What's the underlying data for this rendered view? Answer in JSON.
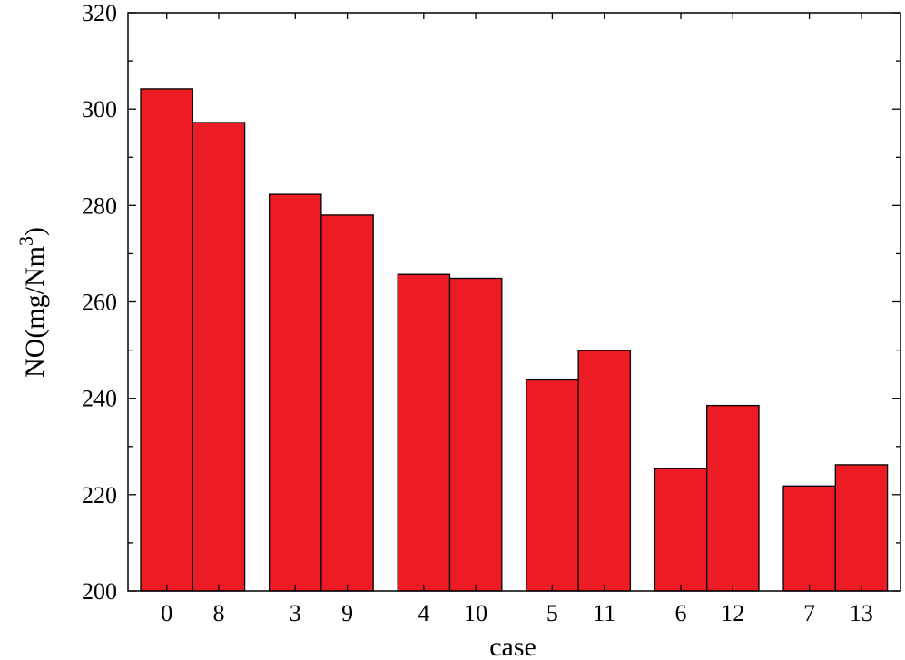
{
  "chart_data": {
    "type": "bar",
    "categories": [
      "0",
      "8",
      "3",
      "9",
      "4",
      "10",
      "5",
      "11",
      "6",
      "12",
      "7",
      "13"
    ],
    "values": [
      304.2,
      297.2,
      282.3,
      278.0,
      265.7,
      264.9,
      243.8,
      249.9,
      225.4,
      238.5,
      221.8,
      226.2
    ],
    "xlabel": "case",
    "ylabel_main": "NO(mg/Nm",
    "ylabel_sup": "3",
    "ylabel_close": ")",
    "ylim": [
      200,
      320
    ],
    "yticks": [
      "200",
      "220",
      "240",
      "260",
      "280",
      "300",
      "320"
    ],
    "bar_color": "#ed1c24",
    "grid": false
  }
}
